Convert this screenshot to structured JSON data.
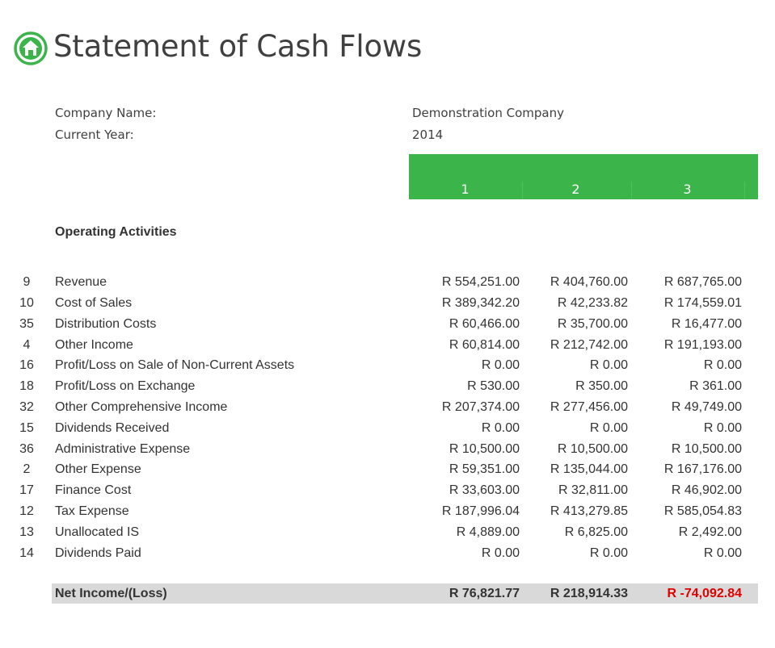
{
  "page": {
    "title": "Statement of Cash Flows",
    "home_icon": "home-icon",
    "accent_color": "#3bb54a",
    "negative_color": "#e00000"
  },
  "info": {
    "company_label": "Company Name:",
    "company_value": "Demonstration Company",
    "year_label": "Current Year:",
    "year_value": "2014"
  },
  "columns": [
    "1",
    "2",
    "3"
  ],
  "section_title": "Operating Activities",
  "rows": [
    {
      "num": "9",
      "label": "Revenue",
      "values": [
        "R 554,251.00",
        "R 404,760.00",
        "R 687,765.00"
      ]
    },
    {
      "num": "10",
      "label": "Cost of Sales",
      "values": [
        "R 389,342.20",
        "R 42,233.82",
        "R 174,559.01"
      ]
    },
    {
      "num": "35",
      "label": "Distribution Costs",
      "values": [
        "R 60,466.00",
        "R 35,700.00",
        "R 16,477.00"
      ]
    },
    {
      "num": "4",
      "label": "Other Income",
      "values": [
        "R 60,814.00",
        "R 212,742.00",
        "R 191,193.00"
      ]
    },
    {
      "num": "16",
      "label": "Profit/Loss on Sale of Non-Current Assets",
      "values": [
        "R 0.00",
        "R 0.00",
        "R 0.00"
      ]
    },
    {
      "num": "18",
      "label": "Profit/Loss on Exchange",
      "values": [
        "R 530.00",
        "R 350.00",
        "R 361.00"
      ]
    },
    {
      "num": "32",
      "label": "Other Comprehensive Income",
      "values": [
        "R 207,374.00",
        "R 277,456.00",
        "R 49,749.00"
      ]
    },
    {
      "num": "15",
      "label": "Dividends Received",
      "values": [
        "R 0.00",
        "R 0.00",
        "R 0.00"
      ]
    },
    {
      "num": "36",
      "label": "Administrative Expense",
      "values": [
        "R 10,500.00",
        "R 10,500.00",
        "R 10,500.00"
      ]
    },
    {
      "num": "2",
      "label": "Other Expense",
      "values": [
        "R 59,351.00",
        "R 135,044.00",
        "R 167,176.00"
      ]
    },
    {
      "num": "17",
      "label": "Finance Cost",
      "values": [
        "R 33,603.00",
        "R 32,811.00",
        "R 46,902.00"
      ]
    },
    {
      "num": "12",
      "label": "Tax Expense",
      "values": [
        "R 187,996.04",
        "R 413,279.85",
        "R 585,054.83"
      ]
    },
    {
      "num": "13",
      "label": "Unallocated IS",
      "values": [
        "R 4,889.00",
        "R 6,825.00",
        "R 2,492.00"
      ]
    },
    {
      "num": "14",
      "label": "Dividends Paid",
      "values": [
        "R 0.00",
        "R 0.00",
        "R 0.00"
      ]
    }
  ],
  "total": {
    "label": "Net Income/(Loss)",
    "values": [
      "R 76,821.77",
      "R 218,914.33",
      "R -74,092.84"
    ],
    "negative": [
      false,
      false,
      true
    ]
  }
}
